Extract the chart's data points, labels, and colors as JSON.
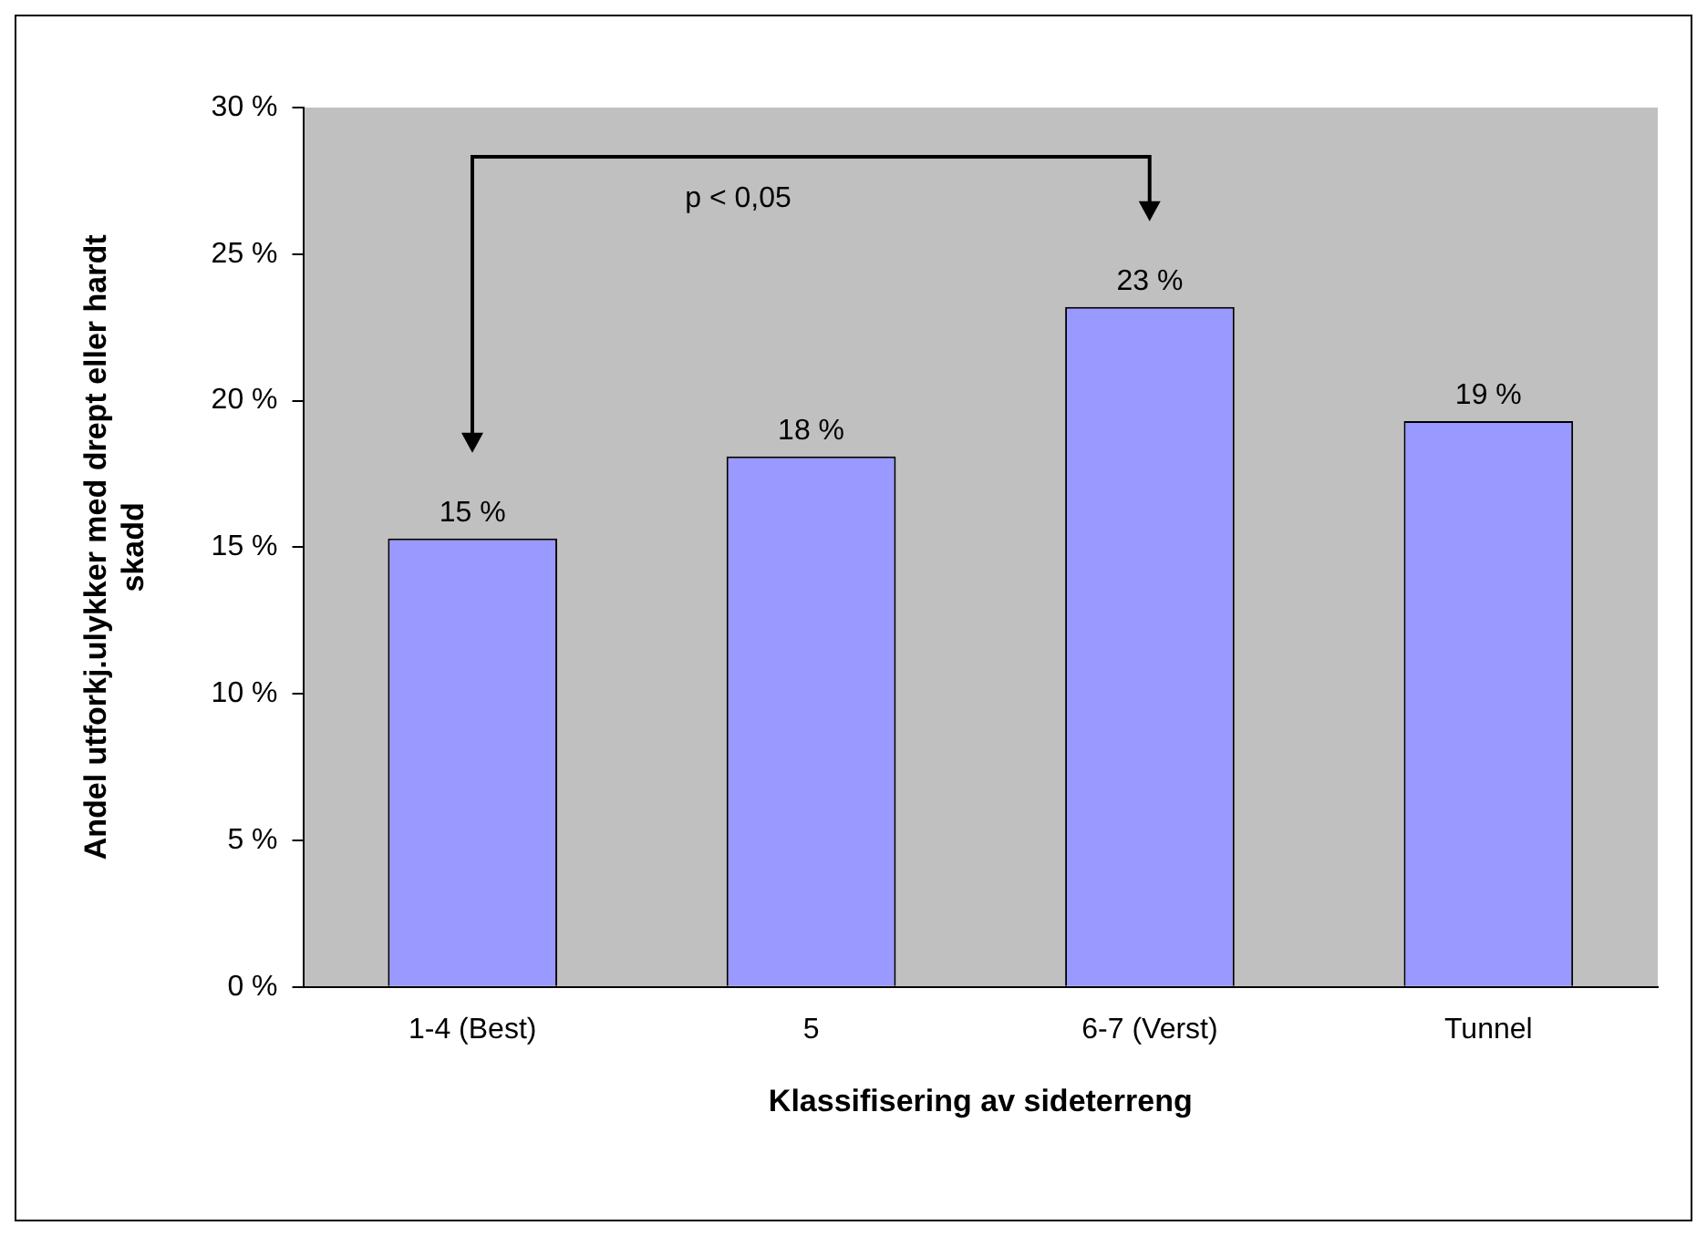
{
  "chart_data": {
    "type": "bar",
    "xlabel": "Klassifisering av sideterreng",
    "ylabel": "Andel utforkj.ulykker med drept eller hardt skadd",
    "categories": [
      "1-4 (Best)",
      "5",
      "6-7 (Verst)",
      "Tunnel"
    ],
    "values": [
      15.3,
      18.1,
      23.2,
      19.3
    ],
    "value_labels": [
      "15 %",
      "18 %",
      "23 %",
      "19 %"
    ],
    "color": "#9999ff",
    "ylim": [
      0,
      30
    ],
    "yticks": [
      {
        "value": 0,
        "label": "0 %"
      },
      {
        "value": 5,
        "label": "5 %"
      },
      {
        "value": 10,
        "label": "10 %"
      },
      {
        "value": 15,
        "label": "15 %"
      },
      {
        "value": 20,
        "label": "20 %"
      },
      {
        "value": 25,
        "label": "25 %"
      },
      {
        "value": 30,
        "label": "30 %"
      }
    ],
    "grid": false,
    "legend": false,
    "annotations": [
      "p < 0,05"
    ]
  }
}
